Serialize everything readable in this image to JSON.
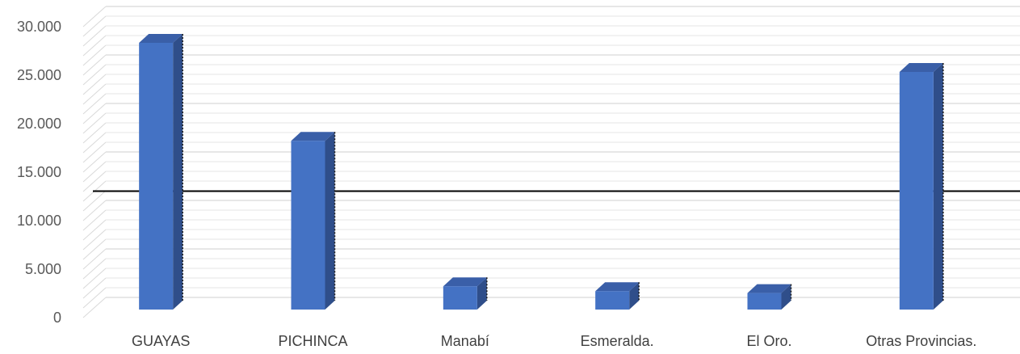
{
  "chart_data": {
    "type": "bar",
    "categories": [
      "GUAYAS",
      "PICHINCA",
      "Manabí",
      "Esmeralda.",
      "El Oro.",
      "Otras Provincias."
    ],
    "values": [
      29000,
      18900,
      3900,
      3400,
      3200,
      26000
    ],
    "y_ticks": [
      "0",
      "5.000",
      "10.000",
      "15.000",
      "20.000",
      "25.000",
      "30.000"
    ],
    "ylim": [
      0,
      30000
    ],
    "reference_line": 12000,
    "title": "",
    "xlabel": "",
    "ylabel": "",
    "grid": true,
    "legend": "none",
    "colors": {
      "bar_front": "#4472c4",
      "bar_top": "#3a5fa8",
      "bar_side": "#2f4e8a",
      "grid": "#d9d9d9",
      "reference_line": "#000000"
    }
  }
}
